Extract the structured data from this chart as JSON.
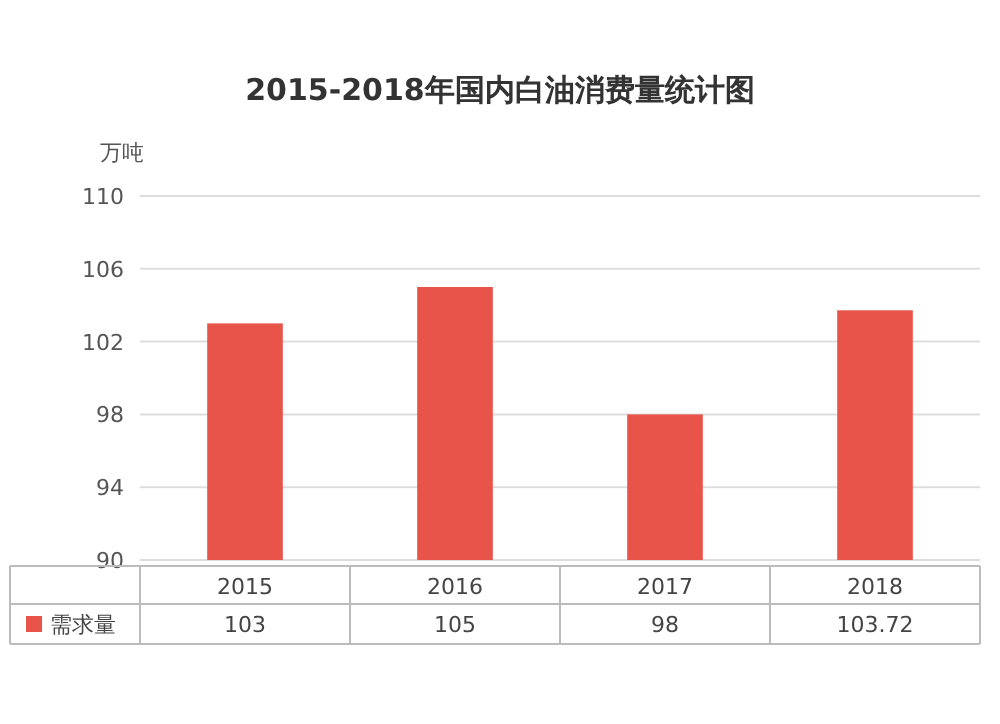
{
  "chart_data": {
    "type": "bar",
    "title": "2015-2018年国内白油消费量统计图",
    "ylabel": "万吨",
    "categories": [
      "2015",
      "2016",
      "2017",
      "2018"
    ],
    "series": [
      {
        "name": "需求量",
        "color": "#e8534a",
        "values": [
          103,
          105,
          98,
          103.72
        ]
      }
    ],
    "ylim": [
      90,
      110
    ],
    "yticks": [
      90,
      94,
      98,
      102,
      106,
      110
    ],
    "grid": "y",
    "legend": "bottom",
    "data_labels": true
  }
}
